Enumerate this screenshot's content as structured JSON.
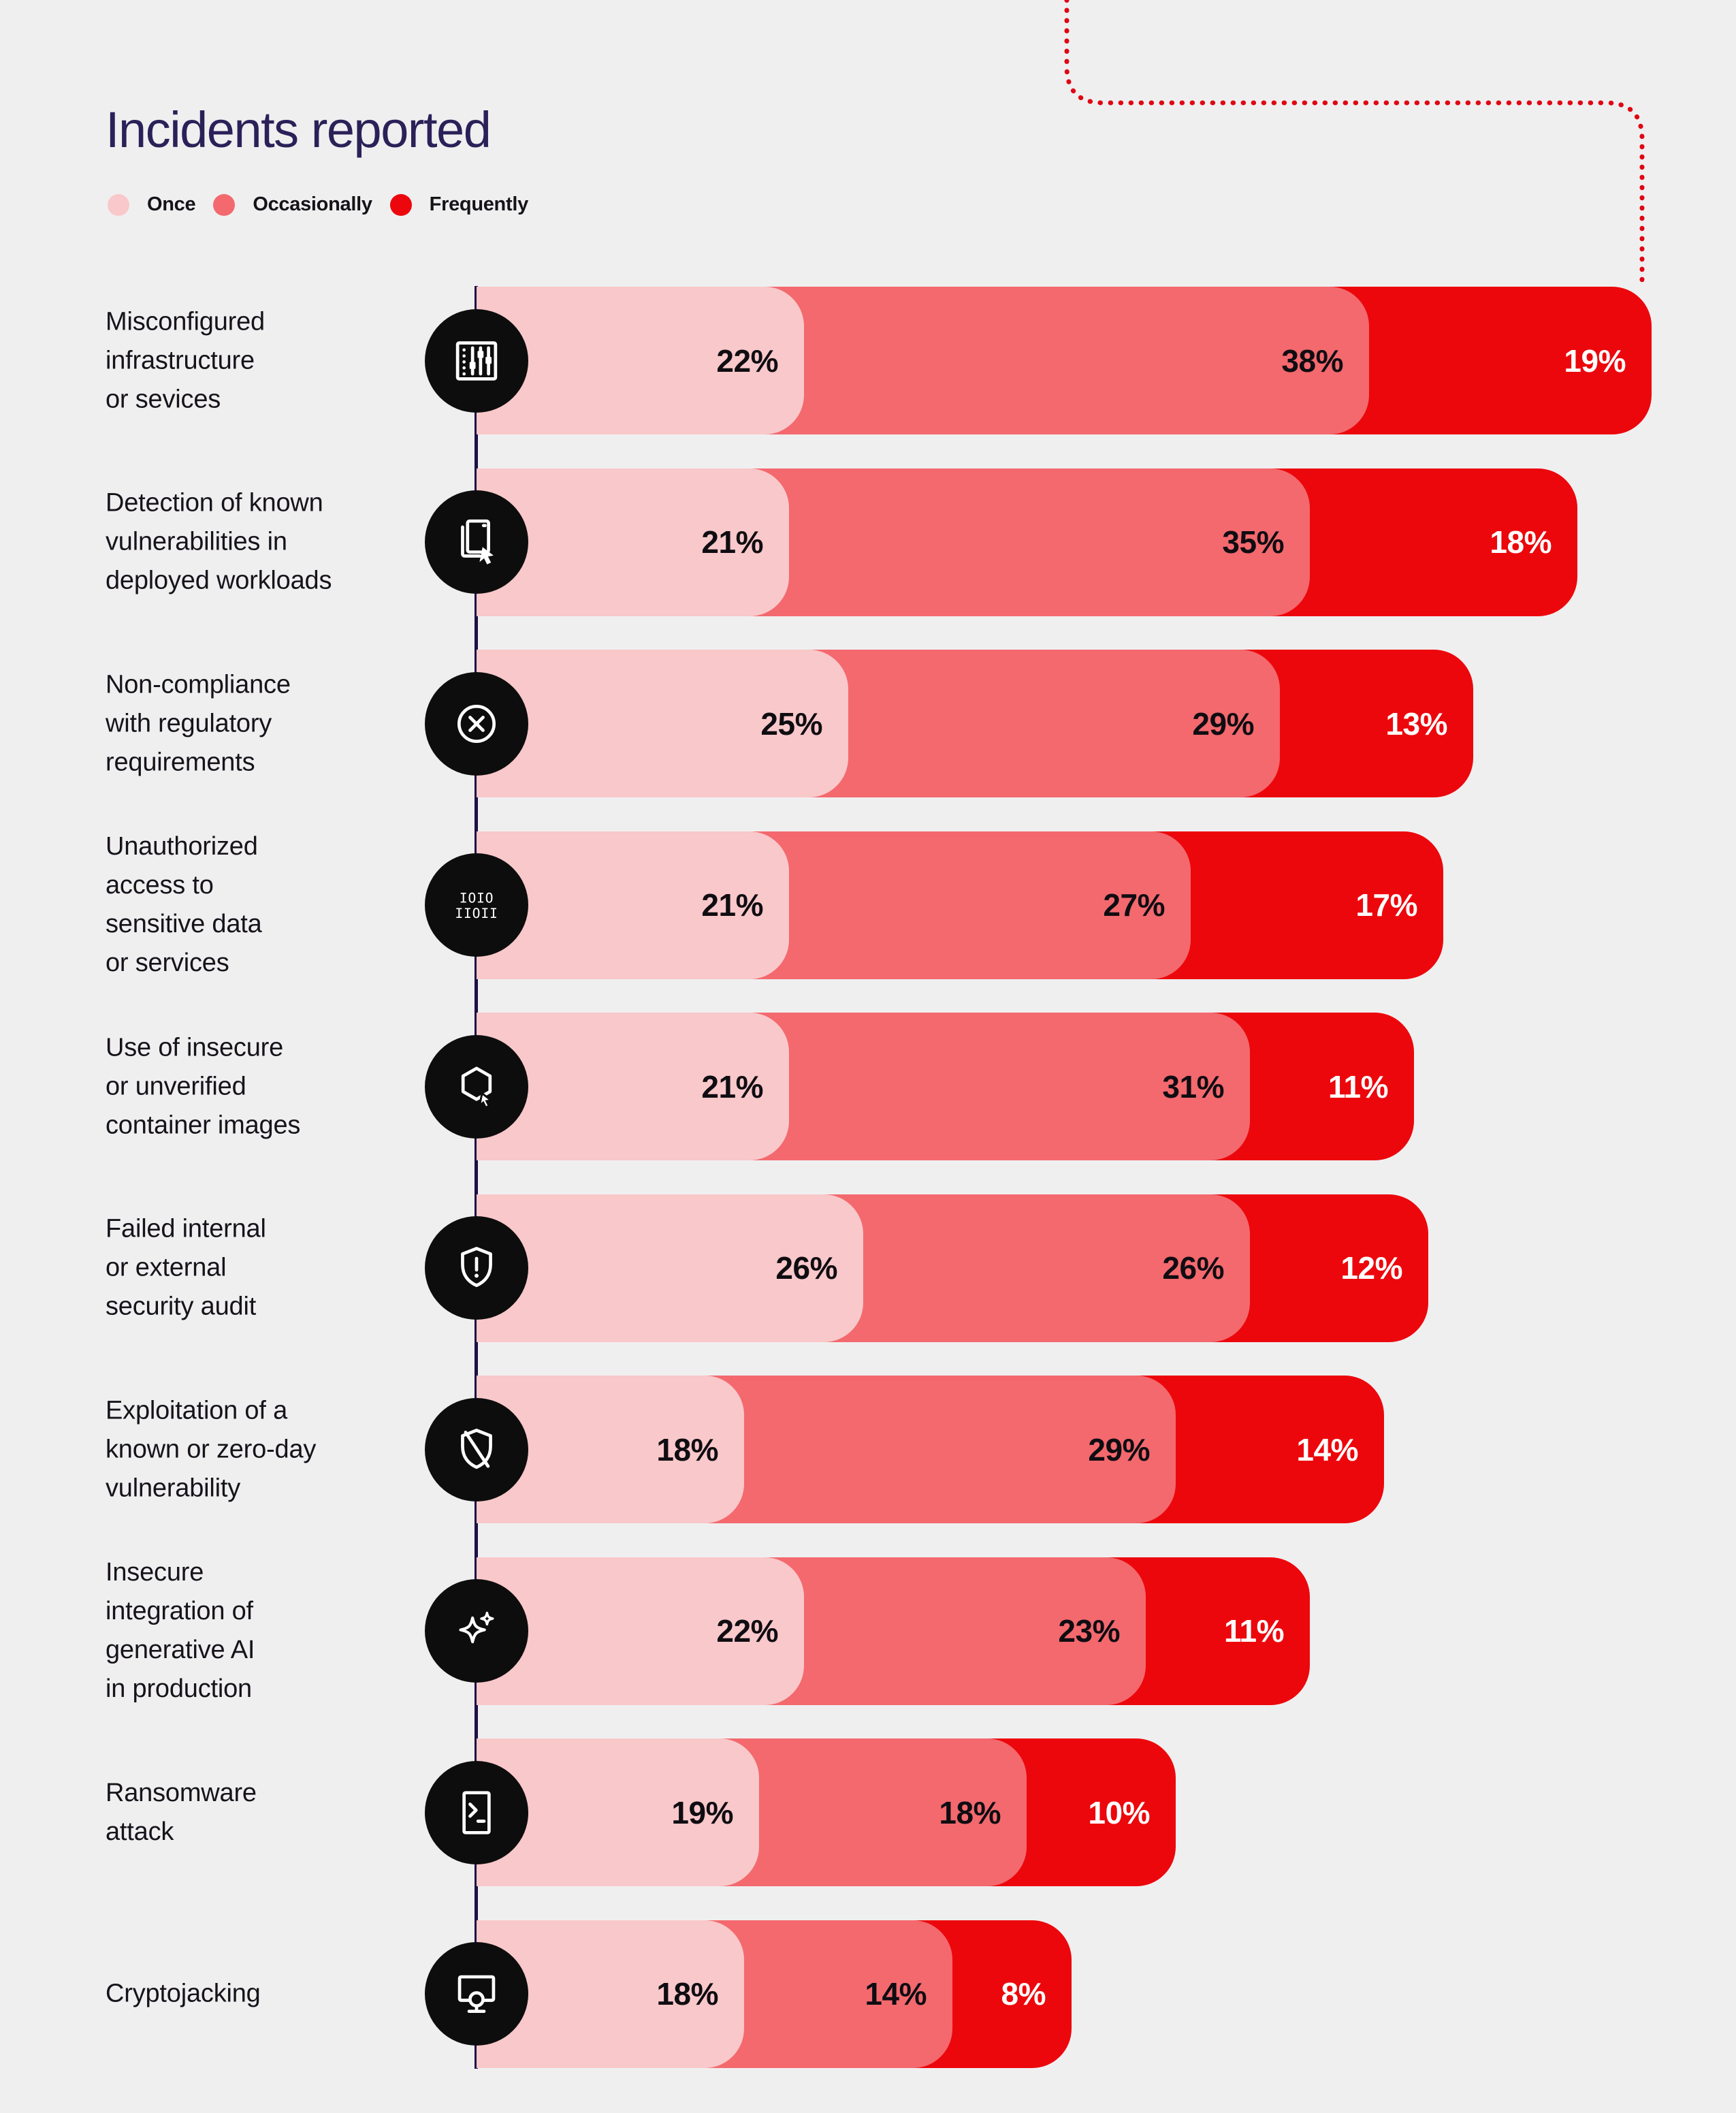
{
  "title": "Incidents reported",
  "colors": {
    "background": "#f0eff0",
    "once": "#f9c8ca",
    "occasionally": "#f3696e",
    "frequently": "#ec070c",
    "title_text": "#2b2158",
    "axis_line": "#1d1144",
    "icon_circle": "#0d0d0d",
    "dotted_connector": "#df0613",
    "value_on_light": "#0f0d12",
    "value_on_red": "#ffffff"
  },
  "legend": {
    "items": [
      {
        "label": "Once",
        "color_key": "once"
      },
      {
        "label": "Occasionally",
        "color_key": "occasionally"
      },
      {
        "label": "Frequently",
        "color_key": "frequently"
      }
    ]
  },
  "chart_data": {
    "type": "bar",
    "orientation": "horizontal",
    "stacked": true,
    "unit": "%",
    "title": "Incidents reported",
    "legend_position": "top-left",
    "grid": false,
    "x_axis_shown": false,
    "categories": [
      "Misconfigured infrastructure or sevices",
      "Detection of known vulnerabilities in deployed workloads",
      "Non-compliance with regulatory requirements",
      "Unauthorized access to sensitive data or services",
      "Use of insecure or unverified container images",
      "Failed internal or external security audit",
      "Exploitation of a known or zero-day vulnerability",
      "Insecure integration of generative AI in production",
      "Ransomware attack",
      "Cryptojacking"
    ],
    "series": [
      {
        "name": "Once",
        "values": [
          22,
          21,
          25,
          21,
          21,
          26,
          18,
          22,
          19,
          18
        ]
      },
      {
        "name": "Occasionally",
        "values": [
          38,
          35,
          29,
          27,
          31,
          26,
          29,
          23,
          18,
          14
        ]
      },
      {
        "name": "Frequently",
        "values": [
          19,
          18,
          13,
          17,
          11,
          12,
          14,
          11,
          10,
          8
        ]
      }
    ]
  },
  "rows": [
    {
      "icon": "sliders-icon",
      "label_lines": [
        "Misconfigured",
        "infrastructure",
        "or sevices"
      ]
    },
    {
      "icon": "layered-documents-icon",
      "label_lines": [
        "Detection of known",
        "vulnerabilities in",
        "deployed workloads"
      ]
    },
    {
      "icon": "x-circle-icon",
      "label_lines": [
        "Non-compliance",
        "with regulatory",
        "requirements"
      ]
    },
    {
      "icon": "binary-code-icon",
      "label_lines": [
        "Unauthorized",
        "access to",
        "sensitive data",
        "or services"
      ]
    },
    {
      "icon": "container-hexagon-icon",
      "label_lines": [
        "Use of insecure",
        "or unverified",
        "container images"
      ]
    },
    {
      "icon": "shield-alert-icon",
      "label_lines": [
        "Failed internal",
        "or external",
        "security audit"
      ]
    },
    {
      "icon": "shield-slash-icon",
      "label_lines": [
        "Exploitation of a",
        "known or zero-day",
        "vulnerability"
      ]
    },
    {
      "icon": "sparkles-icon",
      "label_lines": [
        "Insecure",
        "integration of",
        "generative AI",
        "in production"
      ]
    },
    {
      "icon": "terminal-icon",
      "label_lines": [
        "Ransomware",
        "attack"
      ]
    },
    {
      "icon": "monitor-coin-icon",
      "label_lines": [
        "Cryptojacking"
      ]
    }
  ]
}
